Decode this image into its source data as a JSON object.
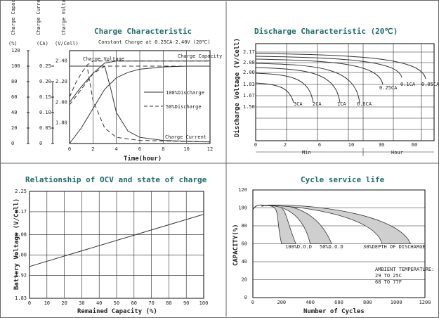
{
  "chart_data": [
    {
      "type": "line",
      "title": "Charge Characteristic",
      "subtitle": "Constant Charge at 0.25CA-2.40V  (20℃)",
      "left_axes": {
        "headers": [
          "Charge Capacity",
          "Charge Current",
          "Charge Voltage"
        ],
        "units": [
          "(%)",
          "(CA)",
          "(V/Cell)"
        ],
        "capacity_ticks": [
          "0",
          "20",
          "40",
          "60",
          "80",
          "100",
          "120"
        ],
        "current_ticks": [
          "0",
          "0.05",
          "0.10",
          "0.15",
          "0.20",
          "0.25"
        ],
        "voltage_ticks": [
          "1.80",
          "2.00",
          "2.20",
          "2.40"
        ]
      },
      "xlabel": "Time(hour)",
      "x_ticks": [
        "0",
        "2",
        "4",
        "6",
        "8",
        "10",
        "12"
      ],
      "xlim": [
        0,
        12
      ],
      "annotations": [
        "Charge Voltage",
        "Charge Capacity",
        "Charge Current"
      ],
      "legend": [
        "100%Discharge",
        "50%Discharge"
      ],
      "series": [
        {
          "name": "Charge Voltage (100%Discharge)",
          "style": "solid",
          "x": [
            0,
            1,
            2,
            3,
            4,
            12
          ],
          "y_volts": [
            2.0,
            2.15,
            2.28,
            2.38,
            2.4,
            2.4
          ]
        },
        {
          "name": "Charge Voltage (50%Discharge)",
          "style": "dashed",
          "x": [
            0,
            0.5,
            1,
            1.5,
            2,
            12
          ],
          "y_volts": [
            2.05,
            2.18,
            2.28,
            2.36,
            2.4,
            2.4
          ]
        },
        {
          "name": "Charge Capacity (100%Discharge)",
          "style": "solid",
          "x": [
            0,
            1,
            2,
            3,
            4,
            5,
            6,
            8,
            10,
            12
          ],
          "y_pct": [
            0,
            20,
            45,
            70,
            85,
            92,
            96,
            99,
            100,
            100
          ]
        },
        {
          "name": "Charge Capacity (50%Discharge)",
          "style": "dashed",
          "x": [
            0,
            1,
            2,
            3,
            12
          ],
          "y_pct": [
            50,
            70,
            90,
            100,
            100
          ]
        },
        {
          "name": "Charge Current (100%Discharge)",
          "style": "solid",
          "x": [
            0,
            3,
            3.5,
            4,
            5,
            6,
            8,
            12
          ],
          "y_ca": [
            0.25,
            0.25,
            0.18,
            0.1,
            0.04,
            0.02,
            0.01,
            0.005
          ]
        },
        {
          "name": "Charge Current (50%Discharge)",
          "style": "dashed",
          "x": [
            0,
            1.5,
            2,
            3,
            4,
            6,
            12
          ],
          "y_ca": [
            0.25,
            0.25,
            0.14,
            0.05,
            0.02,
            0.01,
            0.005
          ]
        }
      ]
    },
    {
      "type": "line",
      "title": "Discharge Characteristic  (20℃)",
      "ylabel": "Discharge Voltage (V/Cell)",
      "y_ticks": [
        "1.50",
        "1.67",
        "1.83",
        "2.00",
        "2.08",
        "2.17"
      ],
      "x_ticks": [
        "0",
        "2",
        "6",
        "10",
        "30",
        "60"
      ],
      "x_unit_labels": [
        "Min",
        "Hour"
      ],
      "annotations": [
        "3CA",
        "2CA",
        "1CA",
        "0.6CA",
        "0.25CA",
        "0.1CA",
        "0.05CA"
      ],
      "series": [
        {
          "name": "3CA",
          "end_min": 4
        },
        {
          "name": "2CA",
          "end_min": 7
        },
        {
          "name": "1CA",
          "end_min": 12
        },
        {
          "name": "0.6CA",
          "end_min": 20
        },
        {
          "name": "0.25CA",
          "end_hour": 3
        },
        {
          "name": "0.1CA",
          "end_hour": 10
        },
        {
          "name": "0.05CA",
          "end_hour": 20
        }
      ]
    },
    {
      "type": "line",
      "title": "Relationship of OCV and state of charge",
      "xlabel": "Remained Capacity (%)",
      "ylabel": "Battery Voltage (V/Cell)",
      "x_ticks": [
        "0",
        "10",
        "20",
        "30",
        "40",
        "50",
        "60",
        "70",
        "80",
        "90",
        "100"
      ],
      "y_ticks": [
        "1.83",
        "1.92",
        "2.00",
        "2.08",
        "2.17",
        "2.25"
      ],
      "xlim": [
        0,
        100
      ],
      "ylim": [
        1.83,
        2.25
      ],
      "series": [
        {
          "x": [
            0,
            100
          ],
          "y": [
            1.955,
            2.16
          ]
        }
      ]
    },
    {
      "type": "area",
      "title": "Cycle service life",
      "xlabel": "Number of Cycles",
      "ylabel": "CAPACITY(%)",
      "x_ticks": [
        "0",
        "200",
        "400",
        "600",
        "800",
        "1000",
        "1200"
      ],
      "y_ticks": [
        "0",
        "20",
        "40",
        "60",
        "80",
        "100",
        "120"
      ],
      "xlim": [
        0,
        1200
      ],
      "ylim": [
        0,
        120
      ],
      "annotations": [
        "100%D.O.D",
        "50%D.O.D",
        "30%DEPTH OF DISCHARGE"
      ],
      "note": [
        "AMBIENT TEMPERATURE:",
        "29 TO 25C",
        "68 TO 77F"
      ],
      "bands": [
        {
          "name": "100%D.O.D",
          "x_end_range": [
            200,
            300
          ]
        },
        {
          "name": "50%D.O.D",
          "x_end_range": [
            400,
            550
          ]
        },
        {
          "name": "30%DEPTH OF DISCHARGE",
          "x_end_range": [
            900,
            1100
          ]
        }
      ]
    }
  ]
}
